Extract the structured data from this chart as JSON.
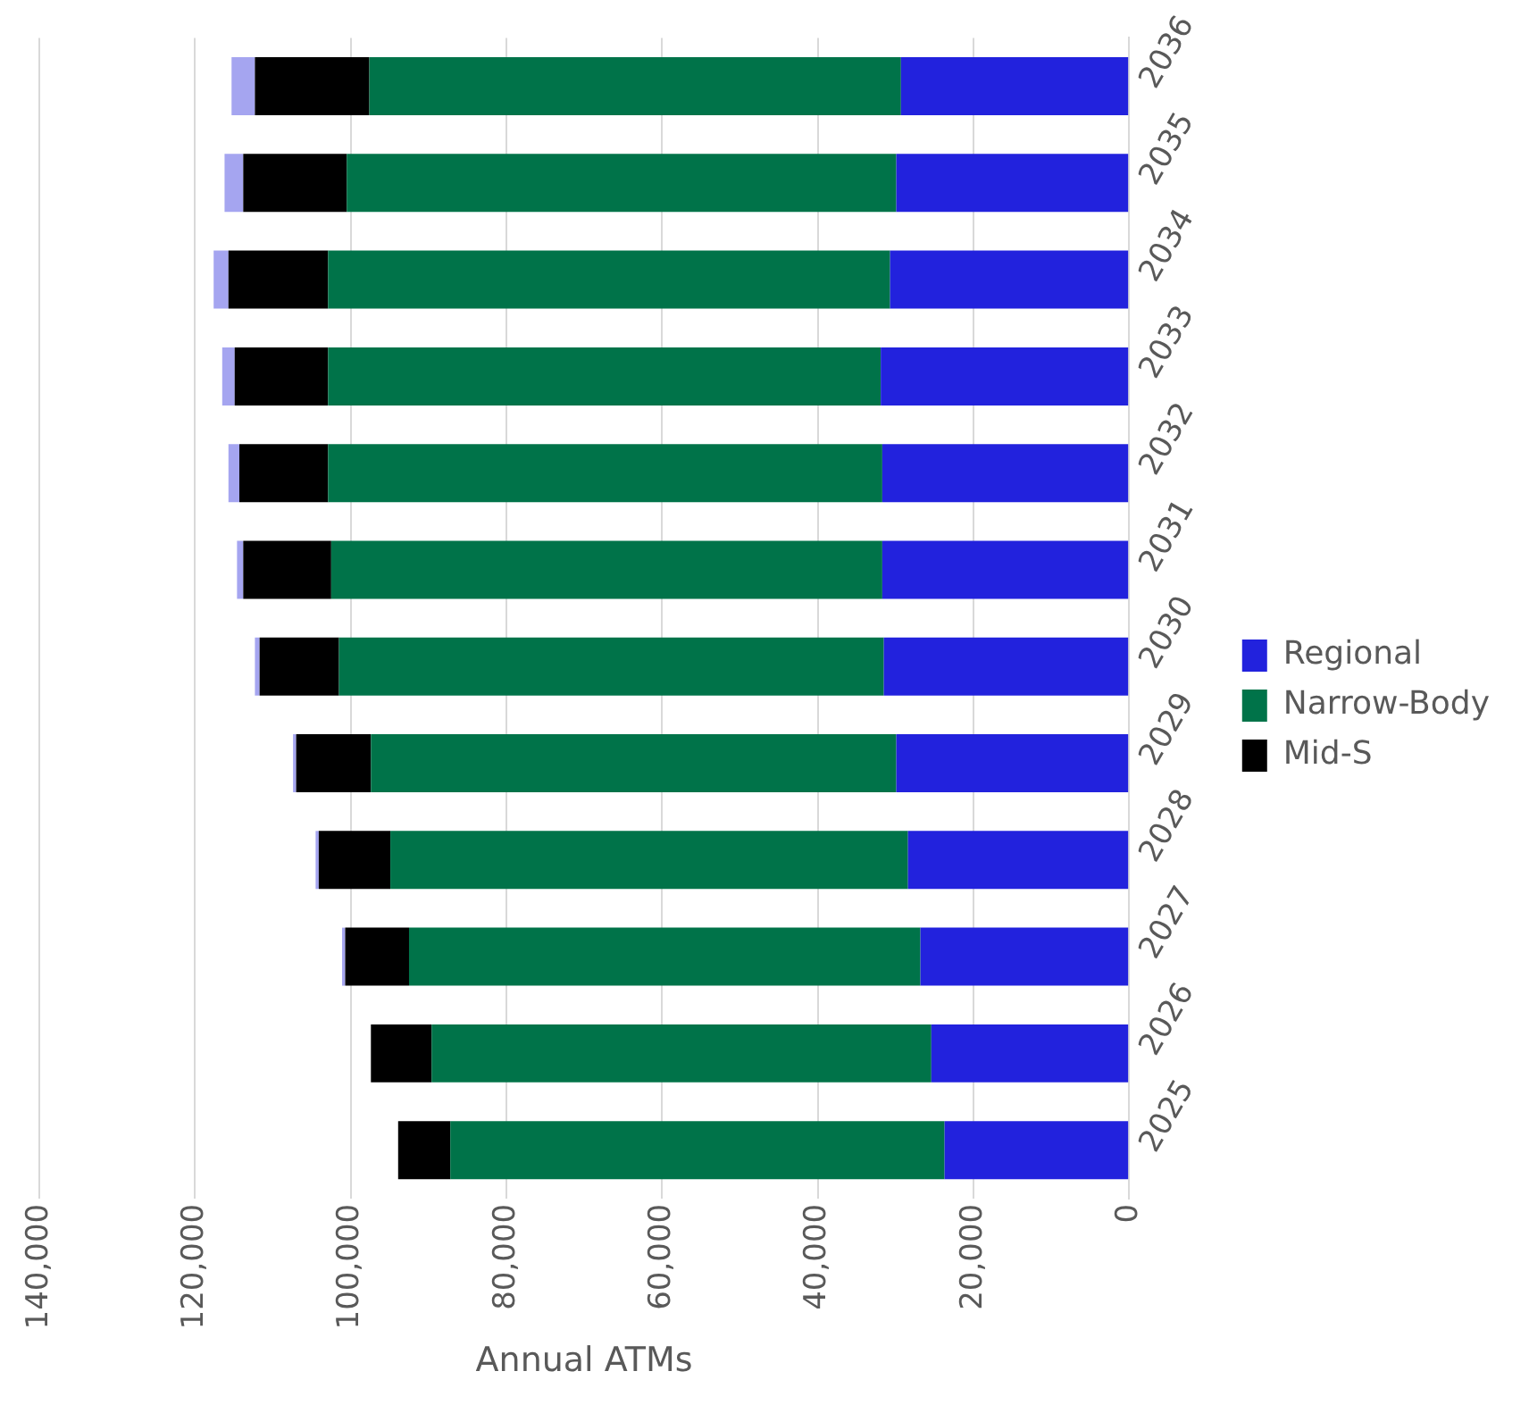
{
  "chart_data": {
    "type": "bar",
    "orientation": "horizontal",
    "stacked": true,
    "xlabel": "Annual ATMs",
    "categories": [
      "2036",
      "2035",
      "2034",
      "2033",
      "2032",
      "2031",
      "2030",
      "2029",
      "2028",
      "2027",
      "2026",
      "2025"
    ],
    "series": [
      {
        "name": "Regional",
        "color": "#2222dd",
        "values": [
          29300,
          29900,
          30700,
          31900,
          31700,
          31700,
          31500,
          29900,
          28400,
          26800,
          25400,
          23700
        ]
      },
      {
        "name": "Narrow-Body",
        "color": "#007349",
        "values": [
          68300,
          70600,
          72200,
          71000,
          71200,
          70800,
          70000,
          67500,
          66500,
          65700,
          64200,
          63500
        ]
      },
      {
        "name": "Mid-S",
        "color": "#000000",
        "values": [
          14700,
          13300,
          12800,
          12000,
          11400,
          11300,
          10200,
          9600,
          9200,
          8200,
          7800,
          6700
        ]
      },
      {
        "color": "#a5a5f0",
        "values": [
          3000,
          2400,
          1900,
          1600,
          1400,
          800,
          600,
          400,
          400,
          400,
          null,
          0
        ]
      }
    ],
    "xlim": [
      140000,
      0
    ],
    "xticks": [
      {
        "value": 140000,
        "label": "140,000"
      },
      {
        "value": 120000,
        "label": "120,000"
      },
      {
        "value": 100000,
        "label": "100,000"
      },
      {
        "value": 80000,
        "label": "80,000"
      },
      {
        "value": 60000,
        "label": "60,000"
      },
      {
        "value": 40000,
        "label": "40,000"
      },
      {
        "value": 20000,
        "label": "20,000"
      },
      0
    ],
    "grid": "x",
    "legend": "right"
  }
}
